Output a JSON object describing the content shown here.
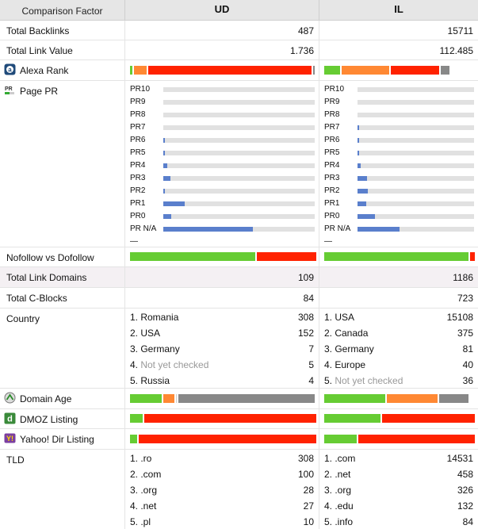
{
  "header": {
    "factor": "Comparison Factor",
    "col1": "UD",
    "col2": "IL"
  },
  "rows": {
    "backlinks": {
      "label": "Total Backlinks",
      "ud": "487",
      "il": "15711"
    },
    "link_value": {
      "label": "Total Link Value",
      "ud": "1.736",
      "il": "112.485"
    },
    "alexa": {
      "label": "Alexa Rank"
    },
    "page_pr": {
      "label": "Page PR",
      "levels": [
        "PR10",
        "PR9",
        "PR8",
        "PR7",
        "PR6",
        "PR5",
        "PR4",
        "PR3",
        "PR2",
        "PR1",
        "PR0",
        "PR N/A",
        "—"
      ],
      "ud_fill": [
        0,
        0,
        0,
        0,
        0.01,
        0.01,
        0.025,
        0.045,
        0.005,
        0.14,
        0.05,
        0.59,
        0
      ],
      "il_fill": [
        0,
        0,
        0,
        0.01,
        0.01,
        0.015,
        0.03,
        0.08,
        0.09,
        0.075,
        0.15,
        0.36,
        0
      ]
    },
    "nofollow": {
      "label": "Nofollow vs Dofollow"
    },
    "link_domains": {
      "label": "Total Link Domains",
      "ud": "109",
      "il": "1186"
    },
    "cblocks": {
      "label": "Total C-Blocks",
      "ud": "84",
      "il": "723"
    },
    "country": {
      "label": "Country",
      "ud": [
        [
          "1. Romania",
          "308"
        ],
        [
          "2. USA",
          "152"
        ],
        [
          "3. Germany",
          "7"
        ],
        [
          "4. Not yet checked",
          "5"
        ],
        [
          "5. Russia",
          "4"
        ]
      ],
      "il": [
        [
          "1. USA",
          "15108"
        ],
        [
          "2. Canada",
          "375"
        ],
        [
          "3. Germany",
          "81"
        ],
        [
          "4. Europe",
          "40"
        ],
        [
          "5. Not yet checked",
          "36"
        ]
      ]
    },
    "domain_age": {
      "label": "Domain Age"
    },
    "dmoz": {
      "label": "DMOZ Listing"
    },
    "yahoo": {
      "label": "Yahoo! Dir Listing"
    },
    "tld": {
      "label": "TLD",
      "ud": [
        [
          "1. .ro",
          "308"
        ],
        [
          "2. .com",
          "100"
        ],
        [
          "3. .org",
          "28"
        ],
        [
          "4. .net",
          "27"
        ],
        [
          "5. .pl",
          "10"
        ]
      ],
      "il": [
        [
          "1. .com",
          "14531"
        ],
        [
          "2. .net",
          "458"
        ],
        [
          "3. .org",
          "326"
        ],
        [
          "4. .edu",
          "132"
        ],
        [
          "5. .info",
          "84"
        ]
      ]
    }
  },
  "bars": {
    "alexa_ud": [
      [
        "#66cc33",
        0.015
      ],
      [
        "#ff8833",
        0.07
      ],
      [
        "#ff2200",
        0.885
      ],
      [
        "#888888",
        0.01
      ]
    ],
    "alexa_il": [
      [
        "#66cc33",
        0.11
      ],
      [
        "#ff8833",
        0.32
      ],
      [
        "#ff2200",
        0.33
      ],
      [
        "#888888",
        0.06
      ]
    ],
    "nofollow_ud": [
      [
        "#66cc33",
        0.68
      ],
      [
        "#ff2200",
        0.32
      ]
    ],
    "nofollow_il": [
      [
        "#66cc33",
        0.97
      ],
      [
        "#ff2200",
        0.03
      ]
    ],
    "age_ud": [
      [
        "#66cc33",
        0.17
      ],
      [
        "#ff8833",
        0.06
      ],
      [
        "#cccccc",
        0.005
      ],
      [
        "#888888",
        0.74
      ]
    ],
    "age_il": [
      [
        "#66cc33",
        0.41
      ],
      [
        "#ff8833",
        0.34
      ],
      [
        "#888888",
        0.2
      ]
    ],
    "dmoz_ud": [
      [
        "#66cc33",
        0.07
      ],
      [
        "#ff2200",
        0.93
      ]
    ],
    "dmoz_il": [
      [
        "#66cc33",
        0.38
      ],
      [
        "#ff2200",
        0.62
      ]
    ],
    "yahoo_ud": [
      [
        "#66cc33",
        0.04
      ],
      [
        "#ff2200",
        0.96
      ]
    ],
    "yahoo_il": [
      [
        "#66cc33",
        0.22
      ],
      [
        "#ff2200",
        0.78
      ]
    ]
  }
}
